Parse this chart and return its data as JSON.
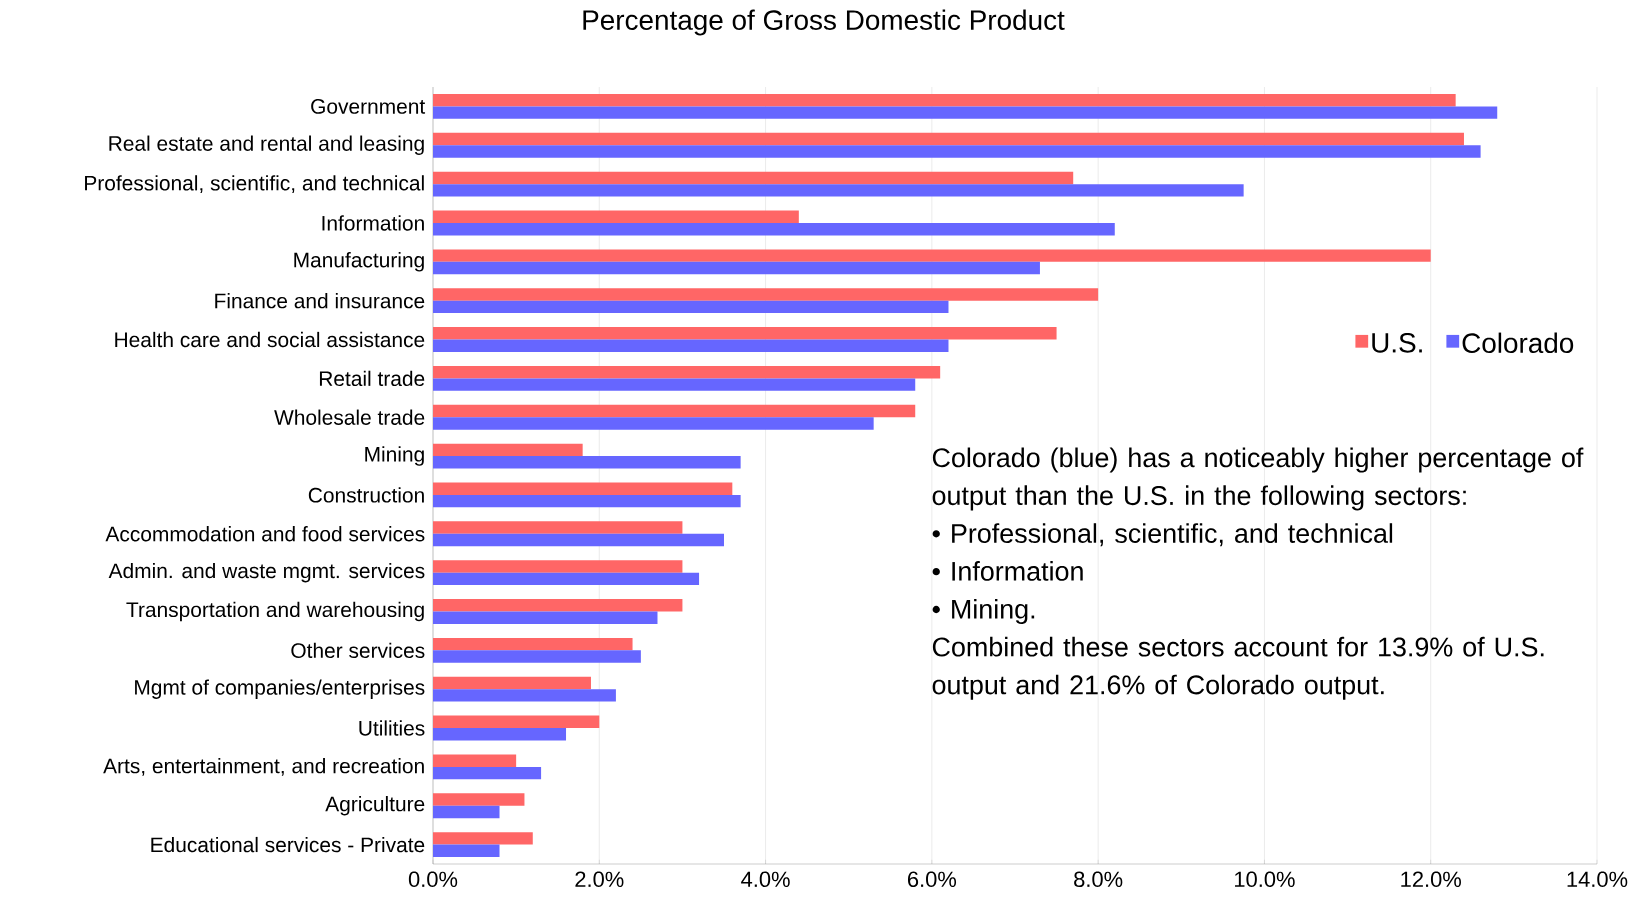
{
  "chart_data": {
    "type": "bar",
    "orientation": "horizontal",
    "title": "Percentage of Gross Domestic Product",
    "categories": [
      "Government",
      "Real estate and rental and leasing",
      "Professional, scientific, and technical",
      "Information",
      "Manufacturing",
      "Finance and insurance",
      "Health care and social assistance",
      "Retail trade",
      "Wholesale trade",
      "Mining",
      "Construction",
      "Accommodation and food services",
      "Admin. and waste mgmt. services",
      "Transportation and warehousing",
      "Other services",
      "Mgmt of companies/enterprises",
      "Utilities",
      "Arts, entertainment, and recreation",
      "Agriculture",
      "Educational services - Private"
    ],
    "series": [
      {
        "name": "U.S.",
        "color": "#ff6666",
        "values": [
          12.3,
          12.4,
          7.7,
          4.4,
          12.0,
          8.0,
          7.5,
          6.1,
          5.8,
          1.8,
          3.6,
          3.0,
          3.0,
          3.0,
          2.4,
          1.9,
          2.0,
          1.0,
          1.1,
          1.2
        ]
      },
      {
        "name": "Colorado",
        "color": "#6666ff",
        "values": [
          12.8,
          12.6,
          9.75,
          8.2,
          7.3,
          6.2,
          6.2,
          5.8,
          5.3,
          3.7,
          3.7,
          3.5,
          3.2,
          2.7,
          2.5,
          2.2,
          1.6,
          1.3,
          0.8,
          0.8
        ]
      }
    ],
    "xlim": [
      0,
      14
    ],
    "xticks": [
      {
        "value": 0,
        "label": "0.0%"
      },
      {
        "value": 2,
        "label": "2.0%"
      },
      {
        "value": 4,
        "label": "4.0%"
      },
      {
        "value": 6,
        "label": "6.0%"
      },
      {
        "value": 8,
        "label": "8.0%"
      },
      {
        "value": 10,
        "label": "10.0%"
      },
      {
        "value": 12,
        "label": "12.0%"
      },
      {
        "value": 14,
        "label": "14.0%"
      }
    ],
    "grid": "x",
    "legend": "right",
    "annotations": [
      "Colorado (blue) has a noticeably higher percentage of output than the U.S. in the following sectors:",
      "•  Professional, scientific, and technical",
      "•  Information",
      "•  Mining.",
      "Combined these sectors account for 13.9% of U.S. output and  21.6% of Colorado output."
    ]
  }
}
